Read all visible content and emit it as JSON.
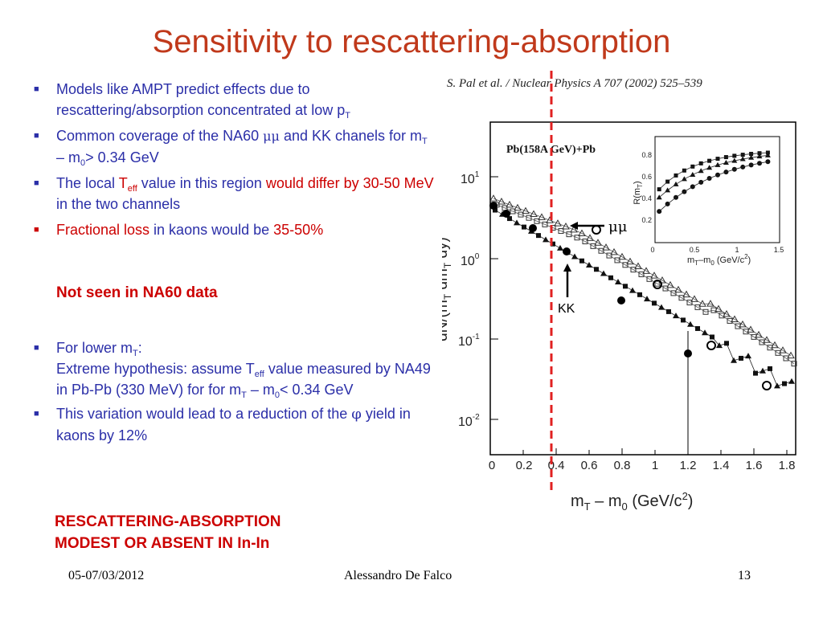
{
  "slide": {
    "title": "Sensitivity to rescattering-absorption",
    "bullets": [
      {
        "pre": "Models like AMPT predict effects due to rescattering/absorption concentrated at low p",
        "sub": "T"
      },
      {
        "a": "Common coverage of the NA60 ",
        "sym": "μμ",
        "b": " and KK chanels for m",
        "sub1": "T",
        "c": " – m",
        "sub2": "0",
        "d": "> 0.34 GeV"
      },
      {
        "a": "The local ",
        "T": "T",
        "sub": "eff",
        "b": " value in this region ",
        "red1": "would differ by 30-50 MeV",
        "c": " in the two channels"
      },
      {
        "red1": "Fractional loss",
        "a": " in kaons would be ",
        "red2": "35-50%"
      }
    ],
    "not_seen": "Not seen in NA60 data",
    "bullets2": [
      {
        "a": "For lower m",
        "sub": "T",
        "b": ":",
        "line2a": "Extreme hypothesis: assume T",
        "line2sub": "eff",
        "line2b": " value measured by NA49 in Pb-Pb (330 MeV) for for m",
        "sub1": "T",
        "c": " – m",
        "sub2": "0",
        "d": "< 0.34 GeV"
      },
      {
        "a": "This variation would lead to a reduction of the ",
        "phi": "φ",
        "b": " yield in kaons by 12%"
      }
    ],
    "conclusion_line1": "RESCATTERING-ABSORPTION",
    "conclusion_line2": "MODEST OR ABSENT IN In-In",
    "footer": {
      "date": "05-07/03/2012",
      "author": "Alessandro De Falco",
      "page": "13"
    },
    "colors": {
      "title": "#c0391b",
      "bullet_text": "#2b2fa8",
      "highlight": "#cc0000"
    }
  },
  "figure": {
    "reference": "S. Pal et al. / Nuclear Physics A 707 (2002) 525–539",
    "system_label": "Pb(158A GeV)+Pb",
    "ylabel_main": "dN/(m",
    "ylabel_sub1": "T",
    "ylabel_mid": " dm",
    "ylabel_sub2": "T",
    "ylabel_end": " dy)",
    "xlabel_main": "m",
    "xlabel_sub1": "T",
    "xlabel_mid": " – m",
    "xlabel_sub2": "0",
    "xlabel_units": "  (GeV/c",
    "xlabel_sup": "2",
    "xlabel_close": ")",
    "x_ticks": [
      "0",
      "0.2",
      "0.4",
      "0.6",
      "0.8",
      "1",
      "1.2",
      "1.4",
      "1.6",
      "1.8"
    ],
    "y_ticks": [
      {
        "base": "10",
        "exp": "1"
      },
      {
        "base": "10",
        "exp": "0"
      },
      {
        "base": "10",
        "exp": "-1"
      },
      {
        "base": "10",
        "exp": "-2"
      }
    ],
    "annotation_mumu": "μμ",
    "annotation_kk": "KK",
    "inset": {
      "ylabel": "R(m",
      "ylabel_sub": "T",
      "ylabel_end": ")",
      "xlabel": "m",
      "xlabel_sub1": "T",
      "xlabel_mid": "–m",
      "xlabel_sub2": "0",
      "xlabel_units": " (GeV/c",
      "xlabel_sup": "2",
      "xlabel_close": ")",
      "x_ticks": [
        "0",
        "0.5",
        "1",
        "1.5"
      ],
      "y_ticks": [
        "0.2",
        "0.4",
        "0.6",
        "0.8"
      ]
    }
  }
}
